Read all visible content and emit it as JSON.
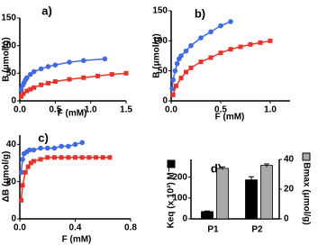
{
  "chart_data": [
    {
      "type": "scatter",
      "title": "a)",
      "x_label": "F (mM)",
      "y_label": "B (μmol/g)",
      "lines": true,
      "xlim": [
        0,
        1.5
      ],
      "xticks": [
        {
          "value": 0,
          "label": "0.0"
        },
        0.5,
        {
          "value": 1,
          "label": "1.0"
        },
        1.5
      ],
      "ylim": [
        0,
        150
      ],
      "yticks": [
        0,
        50,
        100,
        150
      ],
      "series": [
        {
          "color": "#4169e1",
          "marker": "circle",
          "x": [
            0.02,
            0.04,
            0.06,
            0.08,
            0.1,
            0.15,
            0.2,
            0.3,
            0.4,
            0.5,
            0.7,
            0.9,
            1.2
          ],
          "values": [
            20,
            28,
            33,
            38,
            42,
            48,
            53,
            58,
            62,
            65,
            70,
            73,
            76
          ]
        },
        {
          "color": "#e8332b",
          "marker": "square",
          "x": [
            0.02,
            0.05,
            0.1,
            0.15,
            0.2,
            0.3,
            0.4,
            0.5,
            0.7,
            0.9,
            1.1,
            1.3,
            1.5
          ],
          "values": [
            8,
            13,
            18,
            21,
            24,
            29,
            32,
            35,
            39,
            42,
            45,
            48,
            50
          ]
        }
      ]
    },
    {
      "type": "scatter",
      "title": "b)",
      "x_label": "F (mM)",
      "y_label": "B (μmol/g)",
      "lines": true,
      "xlim": [
        0,
        1.2
      ],
      "xticks": [
        {
          "value": 0,
          "label": "0.0"
        },
        0.5,
        {
          "value": 1,
          "label": "1.0"
        }
      ],
      "ylim": [
        0,
        150
      ],
      "yticks": [
        0,
        50,
        100,
        150
      ],
      "series": [
        {
          "color": "#4169e1",
          "marker": "circle",
          "x": [
            0.01,
            0.02,
            0.04,
            0.06,
            0.08,
            0.1,
            0.15,
            0.2,
            0.3,
            0.4,
            0.5,
            0.6
          ],
          "values": [
            20,
            35,
            50,
            62,
            70,
            75,
            83,
            92,
            105,
            115,
            125,
            132
          ]
        },
        {
          "color": "#e8332b",
          "marker": "square",
          "x": [
            0.02,
            0.05,
            0.1,
            0.15,
            0.2,
            0.3,
            0.4,
            0.5,
            0.6,
            0.7,
            0.8,
            0.9,
            1.0
          ],
          "values": [
            10,
            25,
            38,
            48,
            55,
            65,
            72,
            80,
            86,
            90,
            94,
            97,
            100
          ]
        }
      ]
    },
    {
      "type": "scatter",
      "title": "c)",
      "x_label": "F (mM)",
      "y_label": "ΔB (μmol/g)",
      "lines": true,
      "xlim": [
        0,
        0.8
      ],
      "xticks": [
        {
          "value": 0,
          "label": "0.0"
        },
        0.4,
        0.8
      ],
      "ylim": [
        0,
        45
      ],
      "yticks": [
        0,
        20,
        40
      ],
      "series": [
        {
          "color": "#4169e1",
          "marker": "circle",
          "x": [
            0.01,
            0.02,
            0.03,
            0.05,
            0.07,
            0.1,
            0.15,
            0.2,
            0.25,
            0.3,
            0.35,
            0.4,
            0.45
          ],
          "values": [
            25,
            32,
            35,
            36,
            37,
            37,
            38,
            38,
            38,
            39,
            39,
            40,
            41
          ]
        },
        {
          "color": "#e8332b",
          "marker": "square",
          "x": [
            0.01,
            0.02,
            0.04,
            0.06,
            0.08,
            0.1,
            0.15,
            0.2,
            0.25,
            0.3,
            0.35,
            0.4,
            0.45,
            0.5,
            0.55,
            0.6,
            0.65
          ],
          "values": [
            10,
            18,
            25,
            28,
            30,
            31,
            32,
            33,
            33,
            33,
            33,
            33,
            33,
            33,
            33,
            33,
            33
          ]
        }
      ]
    },
    {
      "type": "bar",
      "title": "d)",
      "categories": [
        "P1",
        "P2"
      ],
      "ylim": [
        0,
        285
      ],
      "yticks": [
        0,
        100,
        200
      ],
      "y2lim": [
        0,
        40
      ],
      "y2ticks": [
        0,
        20,
        40
      ],
      "series": [
        {
          "name": "Keq (x 10³) M⁻¹",
          "color": "#000000",
          "values": [
            35,
            187
          ],
          "errors": [
            3,
            15
          ]
        },
        {
          "name": "Bmax (μmol/g)",
          "color": "#aaaaaa",
          "axis": "y2",
          "values": [
            34,
            36
          ],
          "errors": [
            1,
            1
          ]
        }
      ]
    }
  ]
}
